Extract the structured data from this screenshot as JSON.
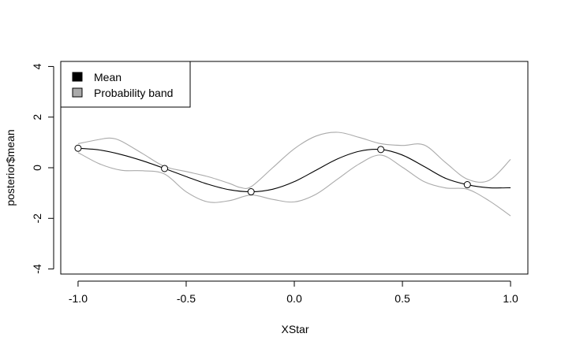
{
  "chart_data": {
    "type": "line",
    "title": "",
    "xlabel": "XStar",
    "ylabel": "posterior$mean",
    "xlim": [
      -1.08,
      1.08
    ],
    "ylim": [
      -4.2,
      4.2
    ],
    "xticks": [
      -1.0,
      -0.5,
      0.0,
      0.5,
      1.0
    ],
    "xtick_labels": [
      "-1.0",
      "-0.5",
      "0.0",
      "0.5",
      "1.0"
    ],
    "yticks": [
      -4,
      -2,
      0,
      2,
      4
    ],
    "ytick_labels": [
      "-4",
      "-2",
      "0",
      "2",
      "4"
    ],
    "grid": false,
    "legend": {
      "position": "top-left",
      "entries": [
        {
          "label": "Mean",
          "color": "#000000"
        },
        {
          "label": "Probability band",
          "color": "#aaaaaa"
        }
      ]
    },
    "series": [
      {
        "name": "Mean",
        "color": "#000000",
        "x": [
          -1.0,
          -0.9,
          -0.8,
          -0.7,
          -0.6,
          -0.5,
          -0.4,
          -0.3,
          -0.2,
          -0.1,
          0.0,
          0.1,
          0.2,
          0.3,
          0.4,
          0.5,
          0.6,
          0.7,
          0.8,
          0.9,
          1.0
        ],
        "y": [
          0.77,
          0.7,
          0.52,
          0.27,
          -0.03,
          -0.35,
          -0.65,
          -0.87,
          -0.95,
          -0.85,
          -0.55,
          -0.1,
          0.35,
          0.65,
          0.72,
          0.5,
          0.05,
          -0.42,
          -0.67,
          -0.79,
          -0.79
        ]
      },
      {
        "name": "Probability band",
        "color": "#aaaaaa",
        "x": [
          -1.0,
          -0.9,
          -0.85,
          -0.8,
          -0.7,
          -0.6,
          -0.5,
          -0.4,
          -0.3,
          -0.25,
          -0.2,
          -0.1,
          0.0,
          0.1,
          0.2,
          0.3,
          0.4,
          0.5,
          0.6,
          0.7,
          0.8,
          0.9,
          1.0
        ],
        "y": [
          0.95,
          1.12,
          1.17,
          1.05,
          0.55,
          0.05,
          -0.15,
          -0.35,
          -0.62,
          -0.78,
          -0.75,
          0.0,
          0.75,
          1.25,
          1.4,
          1.2,
          0.95,
          0.88,
          0.9,
          0.2,
          -0.45,
          -0.5,
          0.33
        ]
      },
      {
        "name": "Probability band",
        "color": "#aaaaaa",
        "x": [
          -1.0,
          -0.9,
          -0.8,
          -0.7,
          -0.6,
          -0.5,
          -0.4,
          -0.3,
          -0.2,
          -0.1,
          0.0,
          0.1,
          0.2,
          0.3,
          0.4,
          0.5,
          0.6,
          0.7,
          0.8,
          0.9,
          1.0
        ],
        "y": [
          0.6,
          0.15,
          -0.1,
          -0.12,
          -0.25,
          -0.95,
          -1.35,
          -1.3,
          -1.08,
          -1.25,
          -1.35,
          -1.05,
          -0.45,
          0.15,
          0.5,
          0.02,
          -0.55,
          -0.8,
          -0.85,
          -1.3,
          -1.9
        ]
      }
    ],
    "points": {
      "name": "Mean",
      "x": [
        -1.0,
        -0.6,
        -0.2,
        0.4,
        0.8
      ],
      "y": [
        0.77,
        -0.03,
        -0.95,
        0.72,
        -0.67
      ]
    }
  }
}
